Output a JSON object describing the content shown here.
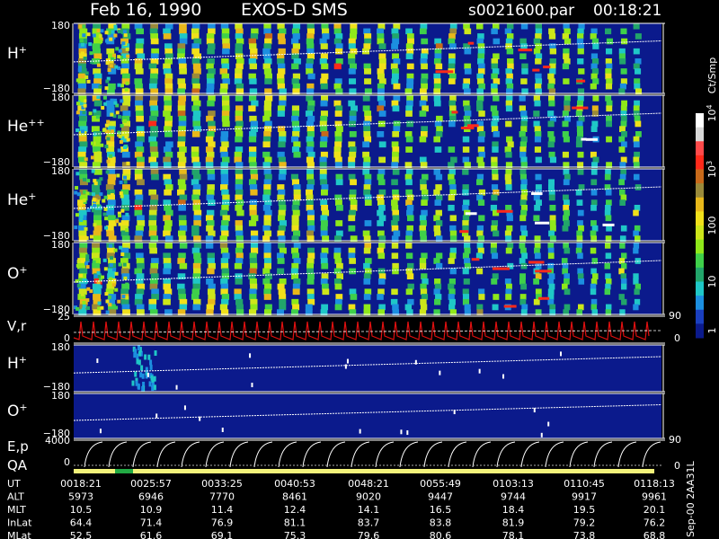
{
  "header": {
    "date": "Feb 16, 1990",
    "mission": "EXOS-D SMS",
    "file": "s0021600.par",
    "time": "00:18:21"
  },
  "colors": {
    "background_fill": "#0b1a8c",
    "trace": "#ffffff",
    "velocity_trace": "#e01010",
    "qa_bar": "#f2f27a",
    "qa_mark": "#22aa44"
  },
  "chart_data": [
    {
      "type": "heatmap",
      "panel": "ion-pitch-angle-spectrograms",
      "species": [
        {
          "label": "H",
          "charge": "+",
          "ylim": [
            -180,
            180
          ],
          "ticks": [
            "180",
            "−180"
          ]
        },
        {
          "label": "He",
          "charge": "++",
          "ylim": [
            -180,
            180
          ],
          "ticks": [
            "180",
            "−180"
          ]
        },
        {
          "label": "He",
          "charge": "+",
          "ylim": [
            -180,
            180
          ],
          "ticks": [
            "180",
            "−180"
          ]
        },
        {
          "label": "O",
          "charge": "+",
          "ylim": [
            -180,
            180
          ],
          "ticks": [
            "180",
            "−180"
          ]
        }
      ],
      "colorbar": {
        "label": "Ct/Smp",
        "scale": "log",
        "range": [
          1,
          10000
        ],
        "ticks": [
          "1",
          "10",
          "100",
          "10^3",
          "10^4"
        ],
        "colors": [
          "#0b1a8c",
          "#1a3fbf",
          "#1c8fe0",
          "#1fc7c7",
          "#22a56a",
          "#3fd04a",
          "#8fe81a",
          "#cde61a",
          "#f0e01a",
          "#e8b81a",
          "#9a8a3a",
          "#c86a1a",
          "#ff2a1a",
          "#ff4a4a",
          "#d8d8d8",
          "#ffffff"
        ]
      }
    },
    {
      "type": "line",
      "panel": "velocity-angle",
      "label": "V,r",
      "ylim_left": [
        0,
        25
      ],
      "ticks_left": [
        "25",
        "0"
      ],
      "ticks_right": [
        "90",
        "0"
      ]
    },
    {
      "type": "heatmap",
      "panel": "low-channel-spectrograms",
      "species": [
        {
          "label": "H",
          "charge": "+",
          "ylim": [
            -180,
            180
          ],
          "ticks": [
            "180",
            "−180"
          ]
        },
        {
          "label": "O",
          "charge": "+",
          "ylim": [
            -180,
            180
          ],
          "ticks": [
            "180",
            "−180"
          ]
        }
      ]
    },
    {
      "type": "line",
      "panel": "energy-pitch",
      "label": "E,p",
      "qa_label": "QA",
      "ylim_left": [
        0,
        4000
      ],
      "ticks_left": [
        "4000",
        "0"
      ],
      "ticks_right": [
        "90",
        "0"
      ]
    }
  ],
  "ephemeris": {
    "rows": [
      {
        "name": "UT",
        "values": [
          "0018:21",
          "0025:57",
          "0033:25",
          "0040:53",
          "0048:21",
          "0055:49",
          "0103:13",
          "0110:45",
          "0118:13"
        ]
      },
      {
        "name": "ALT",
        "values": [
          "5973",
          "6946",
          "7770",
          "8461",
          "9020",
          "9447",
          "9744",
          "9917",
          "9961"
        ]
      },
      {
        "name": "MLT",
        "values": [
          "10.5",
          "10.9",
          "11.4",
          "12.4",
          "14.1",
          "16.5",
          "18.4",
          "19.5",
          "20.1"
        ]
      },
      {
        "name": "InLat",
        "values": [
          "64.4",
          "71.4",
          "76.9",
          "81.1",
          "83.7",
          "83.8",
          "81.9",
          "79.2",
          "76.2"
        ]
      },
      {
        "name": "MLat",
        "values": [
          "52.5",
          "61.6",
          "69.1",
          "75.3",
          "79.6",
          "80.6",
          "78.1",
          "73.8",
          "68.8"
        ]
      }
    ]
  },
  "footer_stamp": "Sep-00  2AA31L"
}
